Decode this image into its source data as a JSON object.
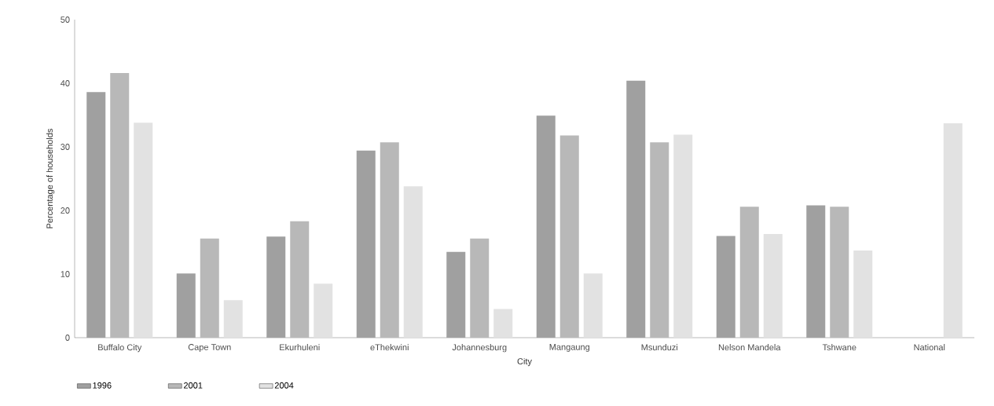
{
  "chart_data": {
    "type": "bar",
    "xlabel": "City",
    "ylabel": "Percentage of households",
    "categories": [
      "Buffalo City",
      "Cape Town",
      "Ekurhuleni",
      "eThekwini",
      "Johannesburg",
      "Mangaung",
      "Msunduzi",
      "Nelson Mandela",
      "Tshwane",
      "National"
    ],
    "series": [
      {
        "name": "1996",
        "color": "#a0a0a0",
        "values": [
          38.6,
          10.1,
          15.9,
          29.4,
          13.5,
          34.9,
          40.4,
          16.0,
          20.8,
          null
        ]
      },
      {
        "name": "2001",
        "color": "#b8b8b8",
        "values": [
          41.6,
          15.6,
          18.3,
          30.7,
          15.6,
          31.8,
          30.7,
          20.6,
          20.6,
          null
        ]
      },
      {
        "name": "2004",
        "color": "#e2e2e2",
        "values": [
          33.8,
          5.9,
          8.5,
          23.8,
          4.5,
          10.1,
          31.9,
          16.3,
          13.7,
          33.7
        ]
      }
    ],
    "ylim": [
      0,
      50
    ],
    "yticks": [
      0,
      10,
      20,
      30,
      40,
      50
    ],
    "legend": "bottom left",
    "grid": false
  }
}
